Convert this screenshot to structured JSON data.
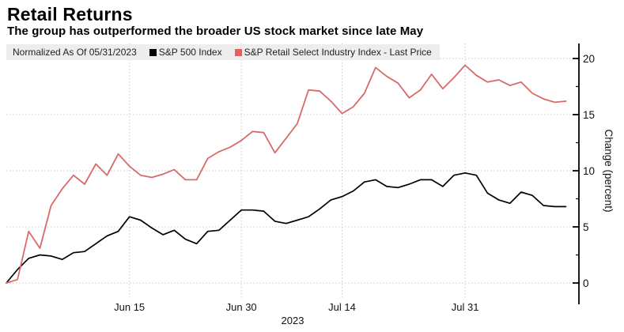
{
  "header": {
    "title": "Retail Returns",
    "subtitle": "The group has outperformed the broader US stock market since late May"
  },
  "legend": {
    "note": "Normalized As Of 05/31/2023",
    "items": [
      {
        "label": "S&P 500 Index",
        "color": "#000000"
      },
      {
        "label": "S&P Retail Select Industry Index - Last Price",
        "color": "#e55f5f"
      }
    ]
  },
  "axes": {
    "y": {
      "label": "Change (percent)",
      "side": "right",
      "ticks": [
        0,
        5,
        10,
        15,
        20
      ],
      "minor_ticks": [
        2.5,
        7.5,
        12.5,
        17.5
      ],
      "range": [
        -1.2,
        21.3
      ]
    },
    "x": {
      "tick_labels": [
        "Jun 15",
        "Jun 30",
        "Jul 14",
        "Jul 31"
      ],
      "tick_day_index": [
        11,
        21,
        30,
        41
      ],
      "year_label": "2023"
    }
  },
  "chart_data": {
    "type": "line",
    "title": "Retail Returns",
    "ylabel": "Change (percent)",
    "ylim": [
      -1.2,
      21.3
    ],
    "grid": true,
    "legend_position": "top",
    "x_description": "Trading-day index, 0 = 05/31/2023 (normalization date), last point = 50",
    "n_points": 51,
    "xtick_labels": [
      "Jun 15",
      "Jun 30",
      "Jul 14",
      "Jul 31"
    ],
    "xtick_day_index": [
      11,
      21,
      30,
      41
    ],
    "series": [
      {
        "name": "S&P 500 Index",
        "color": "#000000",
        "values": [
          0.0,
          1.2,
          2.2,
          2.5,
          2.4,
          2.1,
          2.7,
          2.8,
          3.5,
          4.2,
          4.6,
          5.9,
          5.6,
          4.9,
          4.3,
          4.7,
          3.9,
          3.5,
          4.6,
          4.7,
          5.6,
          6.5,
          6.5,
          6.4,
          5.5,
          5.3,
          5.6,
          5.9,
          6.6,
          7.4,
          7.7,
          8.2,
          9.0,
          9.2,
          8.6,
          8.5,
          8.8,
          9.2,
          9.2,
          8.6,
          9.6,
          9.8,
          9.6,
          8.0,
          7.4,
          7.1,
          8.1,
          7.8,
          6.9,
          6.8,
          6.8
        ]
      },
      {
        "name": "S&P Retail Select Industry Index - Last Price",
        "color": "#d96a6a",
        "values": [
          0.0,
          0.3,
          4.6,
          3.1,
          6.9,
          8.4,
          9.6,
          8.8,
          10.6,
          9.6,
          11.5,
          10.4,
          9.6,
          9.4,
          9.7,
          10.1,
          9.2,
          9.2,
          11.1,
          11.7,
          12.1,
          12.7,
          13.5,
          13.4,
          11.6,
          12.9,
          14.2,
          17.2,
          17.1,
          16.2,
          15.1,
          15.7,
          16.9,
          19.2,
          18.4,
          17.8,
          16.5,
          17.2,
          18.6,
          17.3,
          18.3,
          19.4,
          18.5,
          17.9,
          18.1,
          17.6,
          17.9,
          16.9,
          16.4,
          16.1,
          16.2
        ]
      }
    ]
  },
  "colors": {
    "background": "#ffffff",
    "legend_bg": "#ededed",
    "gridline": "#c9c9c9",
    "axis": "#000000",
    "accent_red": "#d96a6a"
  }
}
